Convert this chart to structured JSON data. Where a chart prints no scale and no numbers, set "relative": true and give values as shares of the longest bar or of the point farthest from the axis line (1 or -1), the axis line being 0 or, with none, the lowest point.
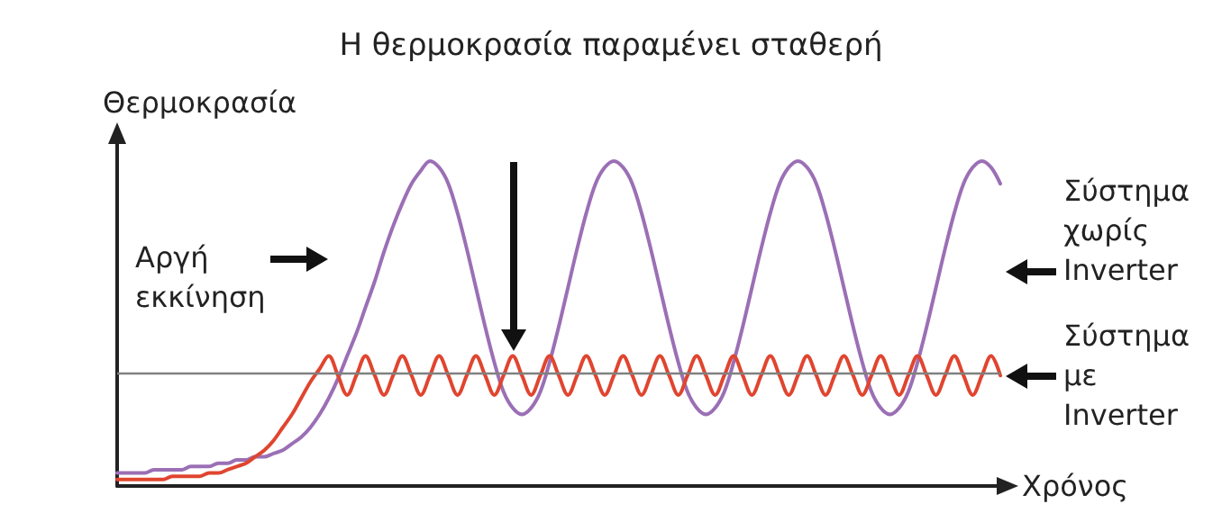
{
  "chart_data": {
    "type": "line",
    "title": "Η θερμοκρασία παραμένει σταθερή",
    "xlabel": "Χρόνος",
    "ylabel": "Θερμοκρασία",
    "relative": true,
    "legend": false,
    "grid": false,
    "annotations": [
      "Αργή εκκίνηση"
    ],
    "ref_lines": [
      {
        "axis": "y",
        "value": 0.35,
        "color": "#808080"
      }
    ],
    "categories": [
      null,
      null,
      null,
      null,
      null,
      null,
      null,
      null,
      null,
      null,
      null,
      null,
      null,
      null,
      null,
      null,
      null,
      null,
      null,
      null,
      null,
      null,
      null,
      null,
      null,
      null,
      null,
      null,
      null,
      null,
      null,
      null,
      null,
      null,
      null,
      null,
      null,
      null,
      null,
      null,
      null,
      null,
      null,
      null,
      null,
      null,
      null,
      null,
      null,
      null,
      null,
      null,
      null,
      null,
      null,
      null,
      null,
      null,
      null,
      null,
      null,
      null,
      null,
      null,
      null,
      null,
      null,
      null,
      null,
      null,
      null,
      null,
      null,
      null,
      null,
      null,
      null,
      null,
      null,
      null,
      null,
      null,
      null,
      null,
      null,
      null,
      null,
      null,
      null,
      null,
      null,
      null,
      null,
      null,
      null,
      null,
      null
    ],
    "series": [
      {
        "name": "Σύστημα χωρίς Inverter",
        "color": "#9b6fb5",
        "values": [
          0.04,
          0.04,
          0.04,
          0.04,
          0.05,
          0.05,
          0.05,
          0.05,
          0.06,
          0.06,
          0.06,
          0.07,
          0.07,
          0.08,
          0.08,
          0.09,
          0.09,
          0.1,
          0.11,
          0.13,
          0.15,
          0.18,
          0.22,
          0.27,
          0.33,
          0.4,
          0.47,
          0.55,
          0.63,
          0.72,
          0.8,
          0.87,
          0.93,
          0.97,
          1,
          0.98,
          0.93,
          0.84,
          0.73,
          0.61,
          0.49,
          0.38,
          0.29,
          0.24,
          0.22,
          0.24,
          0.29,
          0.38,
          0.49,
          0.61,
          0.73,
          0.84,
          0.93,
          0.98,
          1,
          0.98,
          0.93,
          0.84,
          0.73,
          0.61,
          0.49,
          0.38,
          0.29,
          0.24,
          0.22,
          0.24,
          0.29,
          0.38,
          0.49,
          0.61,
          0.73,
          0.84,
          0.93,
          0.98,
          1,
          0.98,
          0.93,
          0.84,
          0.73,
          0.61,
          0.49,
          0.38,
          0.29,
          0.24,
          0.22,
          0.24,
          0.29,
          0.38,
          0.49,
          0.61,
          0.73,
          0.84,
          0.93,
          0.98,
          1,
          0.98,
          0.93
        ]
      },
      {
        "name": "Σύστημα με Inverter",
        "color": "#e0452f",
        "values": [
          0.02,
          0.02,
          0.02,
          0.02,
          0.02,
          0.02,
          0.03,
          0.03,
          0.03,
          0.03,
          0.04,
          0.04,
          0.05,
          0.06,
          0.07,
          0.09,
          0.11,
          0.14,
          0.18,
          0.22,
          0.27,
          0.32,
          0.36,
          0.4,
          0.34,
          0.28,
          0.34,
          0.4,
          0.34,
          0.28,
          0.34,
          0.4,
          0.34,
          0.28,
          0.34,
          0.4,
          0.34,
          0.28,
          0.34,
          0.4,
          0.34,
          0.28,
          0.34,
          0.4,
          0.34,
          0.28,
          0.34,
          0.4,
          0.34,
          0.28,
          0.34,
          0.4,
          0.34,
          0.28,
          0.34,
          0.4,
          0.34,
          0.28,
          0.34,
          0.4,
          0.34,
          0.28,
          0.34,
          0.4,
          0.34,
          0.28,
          0.34,
          0.4,
          0.34,
          0.28,
          0.34,
          0.4,
          0.34,
          0.28,
          0.34,
          0.4,
          0.34,
          0.28,
          0.34,
          0.4,
          0.34,
          0.28,
          0.34,
          0.4,
          0.34,
          0.28,
          0.34,
          0.4,
          0.34,
          0.28,
          0.34,
          0.4,
          0.34,
          0.28,
          0.34,
          0.4,
          0.34
        ]
      }
    ]
  }
}
